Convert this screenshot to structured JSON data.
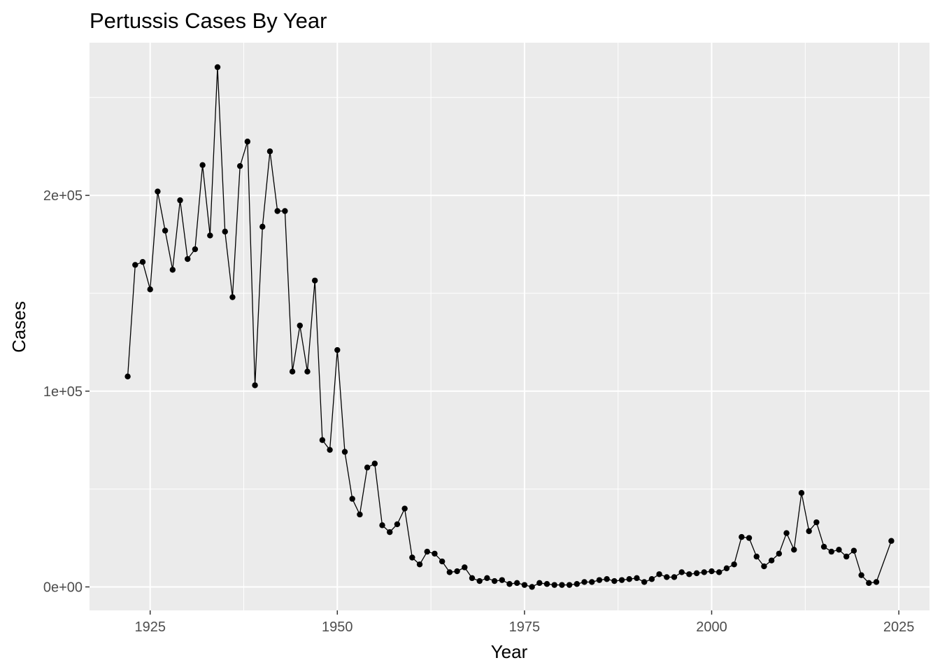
{
  "chart_data": {
    "type": "line",
    "title": "Pertussis Cases By Year",
    "xlabel": "Year",
    "ylabel": "Cases",
    "xlim": [
      1916.9,
      1929.1
    ],
    "ylim": [
      -12000,
      278000
    ],
    "x_ticks": [
      1925,
      1950,
      1975,
      2000,
      2025
    ],
    "x_tick_labels": [
      "1925",
      "1950",
      "1975",
      "2000",
      "2025"
    ],
    "y_ticks": [
      0,
      100000,
      200000
    ],
    "y_tick_labels": [
      "0e+00",
      "1e+05",
      "2e+05"
    ],
    "grid": true,
    "legend": "none",
    "colors": {
      "panel_background": "#ebebeb",
      "grid": "#ffffff",
      "series": "#000000"
    },
    "series": [
      {
        "x": [
          1922,
          1923,
          1924,
          1925,
          1926,
          1927,
          1928,
          1929,
          1930,
          1931,
          1932,
          1933,
          1934,
          1935,
          1936,
          1937,
          1938,
          1939,
          1940,
          1941,
          1942,
          1943,
          1944,
          1945,
          1946,
          1947,
          1948,
          1949,
          1950,
          1951,
          1952,
          1953,
          1954,
          1955,
          1956,
          1957,
          1958,
          1959,
          1960,
          1961,
          1962,
          1963,
          1964,
          1965,
          1966,
          1967,
          1968,
          1969,
          1970,
          1971,
          1972,
          1973,
          1974,
          1975,
          1976,
          1977,
          1978,
          1979,
          1980,
          1981,
          1982,
          1983,
          1984,
          1985,
          1986,
          1987,
          1988,
          1989,
          1990,
          1991,
          1992,
          1993,
          1994,
          1995,
          1996,
          1997,
          1998,
          1999,
          2000,
          2001,
          2002,
          2003,
          2004,
          2005,
          2006,
          2007,
          2008,
          2009,
          2010,
          2011,
          2012,
          2013,
          2014,
          2015,
          2016,
          2017,
          2018,
          2019,
          2020,
          2021,
          2022,
          2024
        ],
        "values": [
          107500,
          164500,
          166000,
          152000,
          202000,
          182000,
          162000,
          197500,
          167500,
          172500,
          215500,
          179500,
          265500,
          181500,
          148000,
          215000,
          227500,
          103000,
          184000,
          222500,
          192000,
          192000,
          110000,
          133500,
          110000,
          156500,
          75000,
          70000,
          121000,
          69000,
          45000,
          37000,
          61000,
          63000,
          31500,
          28000,
          32000,
          40000,
          15000,
          11500,
          18000,
          17000,
          13000,
          7500,
          8000,
          10000,
          4500,
          3000,
          4500,
          3000,
          3500,
          1500,
          2000,
          1000,
          0,
          2000,
          1500,
          1000,
          1000,
          1000,
          1500,
          2500,
          2500,
          3500,
          4000,
          3000,
          3500,
          4000,
          4500,
          2500,
          4000,
          6500,
          5000,
          5000,
          7500,
          6500,
          7000,
          7500,
          8000,
          7500,
          9500,
          11500,
          25500,
          25000,
          15500,
          10500,
          13500,
          17000,
          27500,
          19000,
          48000,
          28500,
          33000,
          20500,
          18000,
          19000,
          15500,
          18500,
          6000,
          2000,
          2500,
          23500
        ]
      }
    ]
  }
}
